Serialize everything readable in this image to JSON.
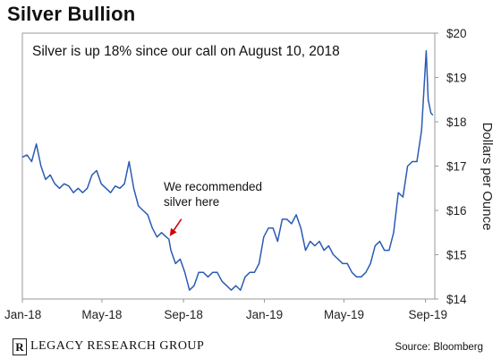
{
  "header": {
    "title": "Silver Bullion"
  },
  "footer": {
    "brand": "LEGACY RESEARCH GROUP",
    "brand_mark": "R",
    "source": "Source: Bloomberg"
  },
  "colors": {
    "line": "#2a5bb5",
    "axis": "#999999",
    "text": "#111111",
    "arrow": "#d40000"
  },
  "chart_data": {
    "type": "line",
    "title": "Silver Bullion",
    "ylabel": "Dollars per Ounce",
    "y_axis_side": "right",
    "ylim": [
      14,
      20
    ],
    "yticks": [
      14,
      15,
      16,
      17,
      18,
      19,
      20
    ],
    "ytick_labels": [
      "$14",
      "$15",
      "$16",
      "$17",
      "$18",
      "$19",
      "$20"
    ],
    "xlim": [
      "2018-01-01",
      "2019-09-15"
    ],
    "xticks": [
      "2018-01-01",
      "2018-05-01",
      "2018-09-01",
      "2019-01-01",
      "2019-05-01",
      "2019-09-01"
    ],
    "xtick_labels": [
      "Jan-18",
      "May-18",
      "Sep-18",
      "Jan-19",
      "May-19",
      "Sep-19"
    ],
    "callout": "Silver is up 18% since our call on August 10, 2018",
    "annotation": {
      "lines": [
        "We recommended",
        "silver here"
      ],
      "x": "2018-08-10",
      "y": 15.4
    },
    "series": [
      {
        "points": [
          [
            "2018-01-01",
            17.2
          ],
          [
            "2018-01-08",
            17.25
          ],
          [
            "2018-01-15",
            17.1
          ],
          [
            "2018-01-22",
            17.5
          ],
          [
            "2018-01-29",
            17.0
          ],
          [
            "2018-02-05",
            16.7
          ],
          [
            "2018-02-12",
            16.8
          ],
          [
            "2018-02-19",
            16.6
          ],
          [
            "2018-02-26",
            16.5
          ],
          [
            "2018-03-05",
            16.6
          ],
          [
            "2018-03-12",
            16.55
          ],
          [
            "2018-03-19",
            16.4
          ],
          [
            "2018-03-26",
            16.5
          ],
          [
            "2018-04-02",
            16.4
          ],
          [
            "2018-04-09",
            16.5
          ],
          [
            "2018-04-16",
            16.8
          ],
          [
            "2018-04-23",
            16.9
          ],
          [
            "2018-04-30",
            16.6
          ],
          [
            "2018-05-07",
            16.5
          ],
          [
            "2018-05-14",
            16.4
          ],
          [
            "2018-05-21",
            16.55
          ],
          [
            "2018-05-28",
            16.5
          ],
          [
            "2018-06-04",
            16.6
          ],
          [
            "2018-06-11",
            17.1
          ],
          [
            "2018-06-18",
            16.5
          ],
          [
            "2018-06-25",
            16.1
          ],
          [
            "2018-07-02",
            16.0
          ],
          [
            "2018-07-09",
            15.9
          ],
          [
            "2018-07-16",
            15.6
          ],
          [
            "2018-07-23",
            15.4
          ],
          [
            "2018-07-30",
            15.5
          ],
          [
            "2018-08-06",
            15.4
          ],
          [
            "2018-08-10",
            15.35
          ],
          [
            "2018-08-13",
            15.1
          ],
          [
            "2018-08-20",
            14.8
          ],
          [
            "2018-08-27",
            14.9
          ],
          [
            "2018-09-03",
            14.6
          ],
          [
            "2018-09-10",
            14.2
          ],
          [
            "2018-09-17",
            14.3
          ],
          [
            "2018-09-24",
            14.6
          ],
          [
            "2018-10-01",
            14.6
          ],
          [
            "2018-10-08",
            14.5
          ],
          [
            "2018-10-15",
            14.6
          ],
          [
            "2018-10-22",
            14.6
          ],
          [
            "2018-10-29",
            14.4
          ],
          [
            "2018-11-05",
            14.3
          ],
          [
            "2018-11-12",
            14.2
          ],
          [
            "2018-11-19",
            14.3
          ],
          [
            "2018-11-26",
            14.2
          ],
          [
            "2018-12-03",
            14.5
          ],
          [
            "2018-12-10",
            14.6
          ],
          [
            "2018-12-17",
            14.6
          ],
          [
            "2018-12-24",
            14.8
          ],
          [
            "2018-12-31",
            15.4
          ],
          [
            "2019-01-07",
            15.6
          ],
          [
            "2019-01-14",
            15.6
          ],
          [
            "2019-01-21",
            15.3
          ],
          [
            "2019-01-28",
            15.8
          ],
          [
            "2019-02-04",
            15.8
          ],
          [
            "2019-02-11",
            15.7
          ],
          [
            "2019-02-18",
            15.9
          ],
          [
            "2019-02-25",
            15.6
          ],
          [
            "2019-03-04",
            15.1
          ],
          [
            "2019-03-11",
            15.3
          ],
          [
            "2019-03-18",
            15.2
          ],
          [
            "2019-03-25",
            15.3
          ],
          [
            "2019-04-01",
            15.1
          ],
          [
            "2019-04-08",
            15.2
          ],
          [
            "2019-04-15",
            15.0
          ],
          [
            "2019-04-22",
            14.9
          ],
          [
            "2019-04-29",
            14.8
          ],
          [
            "2019-05-06",
            14.8
          ],
          [
            "2019-05-13",
            14.6
          ],
          [
            "2019-05-20",
            14.5
          ],
          [
            "2019-05-27",
            14.5
          ],
          [
            "2019-06-03",
            14.6
          ],
          [
            "2019-06-10",
            14.8
          ],
          [
            "2019-06-17",
            15.2
          ],
          [
            "2019-06-24",
            15.3
          ],
          [
            "2019-07-01",
            15.1
          ],
          [
            "2019-07-08",
            15.1
          ],
          [
            "2019-07-15",
            15.5
          ],
          [
            "2019-07-22",
            16.4
          ],
          [
            "2019-07-29",
            16.3
          ],
          [
            "2019-08-05",
            17.0
          ],
          [
            "2019-08-12",
            17.1
          ],
          [
            "2019-08-19",
            17.1
          ],
          [
            "2019-08-26",
            17.8
          ],
          [
            "2019-09-02",
            19.6
          ],
          [
            "2019-09-05",
            18.5
          ],
          [
            "2019-09-09",
            18.2
          ],
          [
            "2019-09-12",
            18.15
          ]
        ]
      }
    ]
  }
}
